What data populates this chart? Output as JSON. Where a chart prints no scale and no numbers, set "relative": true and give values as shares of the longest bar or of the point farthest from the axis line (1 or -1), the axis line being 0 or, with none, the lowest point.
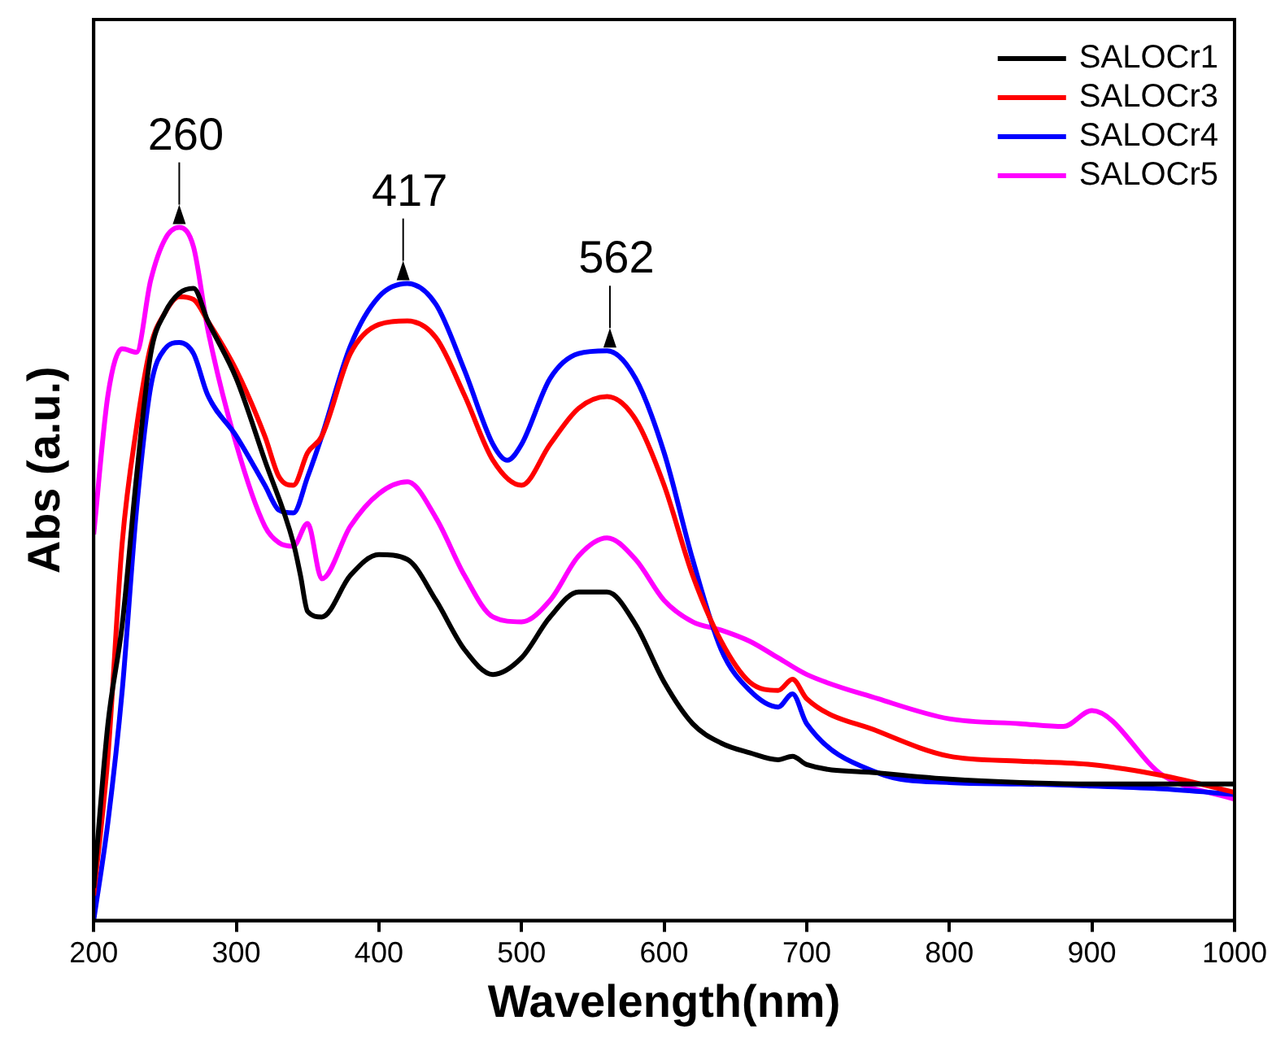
{
  "chart_data": {
    "type": "line",
    "xlabel": "Wavelength(nm)",
    "ylabel": "Abs (a.u.)",
    "relative": true,
    "xlim": [
      200,
      1000
    ],
    "xticks": [
      200,
      300,
      400,
      500,
      600,
      700,
      800,
      900,
      1000
    ],
    "legend": "top right",
    "grid": false,
    "marker": "none",
    "line_style": "solid",
    "annotations": [
      {
        "text": "260",
        "x": 260,
        "y": 1
      },
      {
        "text": "417",
        "x": 417,
        "y": 0.919
      },
      {
        "text": "562",
        "x": 562,
        "y": 0.822
      }
    ],
    "series": [
      {
        "name": "SALOCr1",
        "color": "#000000",
        "x": [
          200,
          210,
          220,
          230,
          240,
          250,
          260,
          270,
          280,
          300,
          320,
          340,
          345,
          350,
          360,
          380,
          400,
          420,
          440,
          460,
          480,
          500,
          520,
          540,
          560,
          580,
          600,
          620,
          640,
          660,
          680,
          690,
          700,
          750,
          800,
          850,
          900,
          950,
          1000
        ],
        "values": [
          0.047,
          0.284,
          0.427,
          0.64,
          0.818,
          0.877,
          0.905,
          0.912,
          0.865,
          0.782,
          0.664,
          0.545,
          0.498,
          0.446,
          0.438,
          0.498,
          0.528,
          0.521,
          0.462,
          0.391,
          0.355,
          0.379,
          0.438,
          0.474,
          0.474,
          0.427,
          0.344,
          0.284,
          0.256,
          0.242,
          0.232,
          0.237,
          0.225,
          0.213,
          0.204,
          0.199,
          0.197,
          0.197,
          0.197
        ]
      },
      {
        "name": "SALOCr3",
        "color": "#ff0000",
        "x": [
          200,
          210,
          220,
          230,
          240,
          250,
          260,
          270,
          280,
          300,
          320,
          330,
          340,
          350,
          360,
          380,
          400,
          420,
          440,
          460,
          480,
          500,
          520,
          540,
          560,
          580,
          600,
          620,
          640,
          660,
          680,
          690,
          700,
          750,
          800,
          850,
          900,
          950,
          1000
        ],
        "values": [
          0.036,
          0.237,
          0.545,
          0.711,
          0.829,
          0.877,
          0.9,
          0.896,
          0.865,
          0.794,
          0.699,
          0.64,
          0.628,
          0.675,
          0.699,
          0.818,
          0.86,
          0.865,
          0.841,
          0.758,
          0.664,
          0.628,
          0.687,
          0.739,
          0.756,
          0.723,
          0.628,
          0.498,
          0.403,
          0.344,
          0.332,
          0.348,
          0.32,
          0.273,
          0.237,
          0.23,
          0.225,
          0.209,
          0.185
        ]
      },
      {
        "name": "SALOCr4",
        "color": "#0000ff",
        "x": [
          200,
          210,
          220,
          230,
          240,
          250,
          260,
          270,
          280,
          300,
          320,
          330,
          340,
          350,
          360,
          380,
          400,
          420,
          440,
          460,
          480,
          490,
          500,
          520,
          540,
          560,
          580,
          600,
          620,
          640,
          660,
          680,
          690,
          700,
          750,
          800,
          850,
          900,
          950,
          1000
        ],
        "values": [
          0,
          0.142,
          0.332,
          0.592,
          0.77,
          0.825,
          0.834,
          0.818,
          0.758,
          0.699,
          0.628,
          0.592,
          0.588,
          0.64,
          0.699,
          0.829,
          0.9,
          0.919,
          0.889,
          0.794,
          0.687,
          0.664,
          0.687,
          0.782,
          0.818,
          0.822,
          0.782,
          0.675,
          0.521,
          0.391,
          0.332,
          0.308,
          0.327,
          0.284,
          0.213,
          0.199,
          0.197,
          0.194,
          0.19,
          0.182
        ]
      },
      {
        "name": "SALOCr5",
        "color": "#ff00ff",
        "x": [
          200,
          210,
          220,
          230,
          240,
          250,
          260,
          270,
          280,
          300,
          320,
          330,
          340,
          350,
          360,
          380,
          400,
          420,
          440,
          460,
          480,
          500,
          520,
          540,
          560,
          580,
          600,
          620,
          640,
          660,
          680,
          700,
          750,
          800,
          850,
          880,
          900,
          950,
          1000
        ],
        "values": [
          0.557,
          0.758,
          0.825,
          0.82,
          0.924,
          0.983,
          1,
          0.972,
          0.853,
          0.687,
          0.569,
          0.545,
          0.54,
          0.573,
          0.493,
          0.569,
          0.616,
          0.633,
          0.581,
          0.498,
          0.438,
          0.431,
          0.462,
          0.526,
          0.552,
          0.521,
          0.462,
          0.431,
          0.419,
          0.403,
          0.379,
          0.355,
          0.32,
          0.291,
          0.284,
          0.28,
          0.303,
          0.209,
          0.175
        ]
      }
    ]
  }
}
